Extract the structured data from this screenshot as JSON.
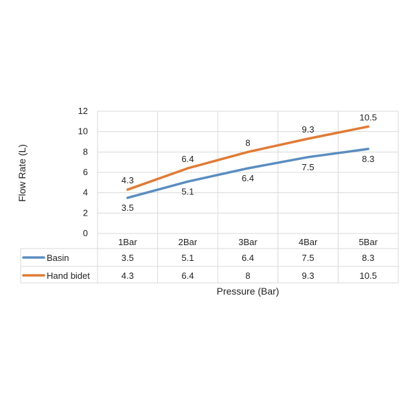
{
  "chart_data": {
    "type": "line",
    "title": "",
    "xlabel": "Pressure (Bar)",
    "ylabel": "Flow Rate (L)",
    "categories": [
      "1Bar",
      "2Bar",
      "3Bar",
      "4Bar",
      "5Bar"
    ],
    "ylim": [
      0,
      12
    ],
    "yticks": [
      0,
      2,
      4,
      6,
      8,
      10,
      12
    ],
    "grid": true,
    "legend": "data-table",
    "series": [
      {
        "name": "Basin",
        "values": [
          3.5,
          5.1,
          6.4,
          7.5,
          8.3
        ],
        "labels": [
          "3.5",
          "5.1",
          "6.4",
          "7.5",
          "8.3"
        ],
        "color": "#5b8dc0",
        "label_position": "below"
      },
      {
        "name": "Hand bidet",
        "values": [
          4.3,
          6.4,
          8,
          9.3,
          10.5
        ],
        "labels": [
          "4.3",
          "6.4",
          "8",
          "9.3",
          "10.5"
        ],
        "color": "#e07b36",
        "label_position": "above"
      }
    ]
  }
}
